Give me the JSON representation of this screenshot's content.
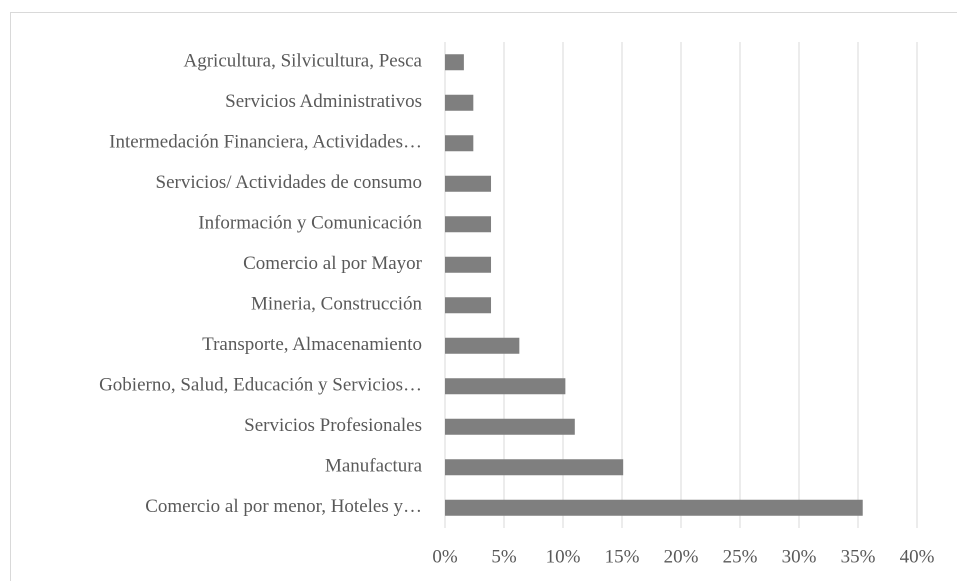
{
  "chart_data": {
    "type": "hbar",
    "categories": [
      "Agricultura, Silvicultura, Pesca",
      "Servicios Administrativos",
      "Intermedación Financiera, Actividades…",
      "Servicios/ Actividades de consumo",
      "Información y Comunicación",
      "Comercio al por Mayor",
      "Mineria, Construcción",
      "Transporte, Almacenamiento",
      "Gobierno, Salud, Educación y Servicios…",
      "Servicios Profesionales",
      "Manufactura",
      "Comercio al por menor, Hoteles y…"
    ],
    "values": [
      1.6,
      2.4,
      2.4,
      3.9,
      3.9,
      3.9,
      3.9,
      6.3,
      10.2,
      11.0,
      15.1,
      35.4
    ],
    "color": "#7f7f7f",
    "xlim": [
      0,
      40
    ],
    "xticks": [
      {
        "value": 0,
        "label": "0%"
      },
      {
        "value": 5,
        "label": "5%"
      },
      {
        "value": 10,
        "label": "10%"
      },
      {
        "value": 15,
        "label": "15%"
      },
      {
        "value": 20,
        "label": "20%"
      },
      {
        "value": 25,
        "label": "25%"
      },
      {
        "value": 30,
        "label": "30%"
      },
      {
        "value": 35,
        "label": "35%"
      },
      {
        "value": 40,
        "label": "40%"
      }
    ],
    "grid": true
  }
}
